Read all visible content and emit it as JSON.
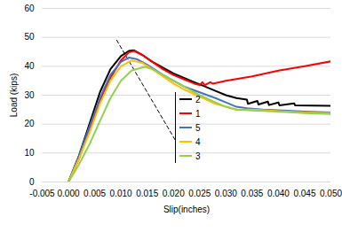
{
  "chart_data": {
    "type": "line",
    "x_label": "Slip(inches)",
    "y_label": "Load (kips)",
    "xlim": [
      -0.005,
      0.05
    ],
    "xticks": [
      -0.005,
      {
        "value": 0,
        "label": "0.000"
      },
      0.005,
      {
        "value": 0.01,
        "label": "0.010"
      },
      0.015,
      {
        "value": 0.02,
        "label": "0.020"
      },
      0.025,
      {
        "value": 0.03,
        "label": "0.030"
      },
      0.035,
      {
        "value": 0.04,
        "label": "0.040"
      },
      0.045,
      {
        "value": 0.05,
        "label": "0.050"
      }
    ],
    "ylim": [
      0,
      60
    ],
    "yticks": [
      0,
      10,
      20,
      30,
      40,
      50,
      60
    ],
    "grid": true,
    "legend": "center",
    "leader_line": {
      "x": [
        0.0092,
        0.0205
      ],
      "y": [
        49,
        14
      ],
      "line_style": "dashed"
    },
    "series": [
      {
        "name": "2",
        "color": "#000000",
        "x": [
          0,
          0.002,
          0.004,
          0.006,
          0.008,
          0.01,
          0.0115,
          0.0125,
          0.014,
          0.016,
          0.018,
          0.02,
          0.022,
          0.024,
          0.026,
          0.028,
          0.03,
          0.032,
          0.034,
          0.0342,
          0.036,
          0.0362,
          0.038,
          0.0382,
          0.04,
          0.0402,
          0.043,
          0.0432,
          0.05
        ],
        "values": [
          0,
          9,
          20,
          31,
          39,
          43.5,
          45.3,
          45.5,
          44,
          41.5,
          39.5,
          37.5,
          36,
          34.5,
          33,
          31.5,
          30,
          29,
          28.5,
          27,
          28,
          26.8,
          27.8,
          26.6,
          27.5,
          26.5,
          27.2,
          26.5,
          26.3
        ]
      },
      {
        "name": "1",
        "color": "#ff0000",
        "x": [
          0,
          0.002,
          0.004,
          0.006,
          0.008,
          0.01,
          0.0115,
          0.0125,
          0.014,
          0.016,
          0.018,
          0.02,
          0.022,
          0.024,
          0.025,
          0.0255,
          0.026,
          0.027,
          0.0275,
          0.03,
          0.035,
          0.04,
          0.045,
          0.05
        ],
        "values": [
          0,
          8,
          18,
          28,
          36,
          42,
          44.8,
          45.3,
          44,
          41.5,
          39,
          37,
          35.5,
          34,
          33.5,
          34.5,
          33.5,
          34.5,
          34,
          35,
          36.5,
          38.5,
          40,
          41.7
        ]
      },
      {
        "name": "5",
        "color": "#4472c4",
        "x": [
          0,
          0.002,
          0.004,
          0.006,
          0.008,
          0.01,
          0.0115,
          0.013,
          0.015,
          0.018,
          0.02,
          0.022,
          0.025,
          0.028,
          0.03,
          0.032,
          0.034,
          0.037,
          0.04,
          0.045,
          0.05
        ],
        "values": [
          0,
          9,
          19,
          29,
          37,
          41.5,
          43,
          42.5,
          40.5,
          37,
          35,
          33,
          31,
          29,
          27.5,
          26,
          25.5,
          25,
          24.8,
          24.3,
          24
        ]
      },
      {
        "name": "4",
        "color": "#ffc000",
        "x": [
          0,
          0.002,
          0.004,
          0.006,
          0.008,
          0.01,
          0.012,
          0.014,
          0.016,
          0.018,
          0.02,
          0.022,
          0.025,
          0.028,
          0.03,
          0.032,
          0.035,
          0.04,
          0.045,
          0.05
        ],
        "values": [
          0,
          8,
          17,
          27,
          35,
          40,
          42,
          41.2,
          39,
          36.5,
          34,
          32,
          29.5,
          27,
          26,
          25,
          25,
          24.5,
          24,
          23.8
        ]
      },
      {
        "name": "3",
        "color": "#92d050",
        "x": [
          0,
          0.002,
          0.004,
          0.006,
          0.008,
          0.01,
          0.012,
          0.0145,
          0.016,
          0.018,
          0.02,
          0.022,
          0.025,
          0.028,
          0.03,
          0.032,
          0.035,
          0.04,
          0.045,
          0.05
        ],
        "values": [
          0,
          6,
          13,
          21,
          29,
          35,
          38.5,
          39.8,
          39,
          37,
          35,
          33,
          30,
          27.5,
          26,
          25,
          24.7,
          24.3,
          23.8,
          23.5
        ]
      }
    ]
  }
}
